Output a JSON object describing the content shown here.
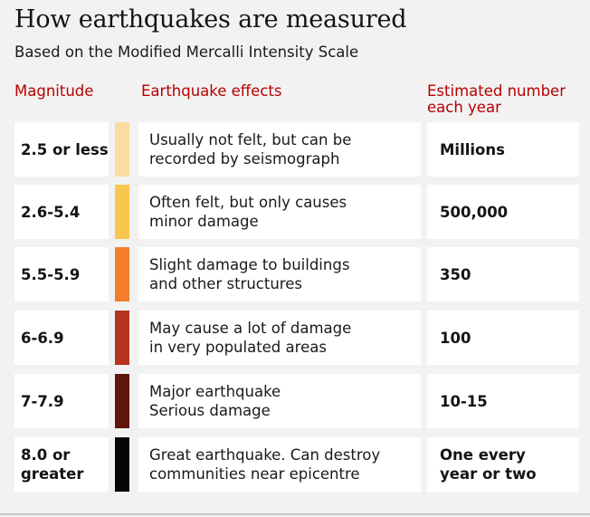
{
  "title": "How earthquakes are measured",
  "subtitle": "Based on the Modified Mercalli Intensity Scale",
  "headers": {
    "magnitude": "Magnitude",
    "effects": "Earthquake effects",
    "estimated": "Estimated number\neach year"
  },
  "rows": [
    {
      "magnitude": "2.5 or less",
      "color": "#fbdba0",
      "effects": "Usually not felt, but can be\nrecorded by seismograph",
      "estimated": "Millions"
    },
    {
      "magnitude": "2.6-5.4",
      "color": "#f9c74f",
      "effects": "Often felt, but only causes\nminor damage",
      "estimated": "500,000"
    },
    {
      "magnitude": "5.5-5.9",
      "color": "#f47c2a",
      "effects": "Slight damage to buildings\nand other structures",
      "estimated": "350"
    },
    {
      "magnitude": "6-6.9",
      "color": "#b5331e",
      "effects": "May cause a lot of damage\nin very populated areas",
      "estimated": "100"
    },
    {
      "magnitude": "7-7.9",
      "color": "#5e160c",
      "effects": "Major earthquake\nSerious damage",
      "estimated": "10-15"
    },
    {
      "magnitude": "8.0 or\ngreater",
      "color": "#050505",
      "effects": "Great earthquake. Can destroy\ncommunities near epicentre",
      "estimated": "One every\nyear or two"
    }
  ]
}
